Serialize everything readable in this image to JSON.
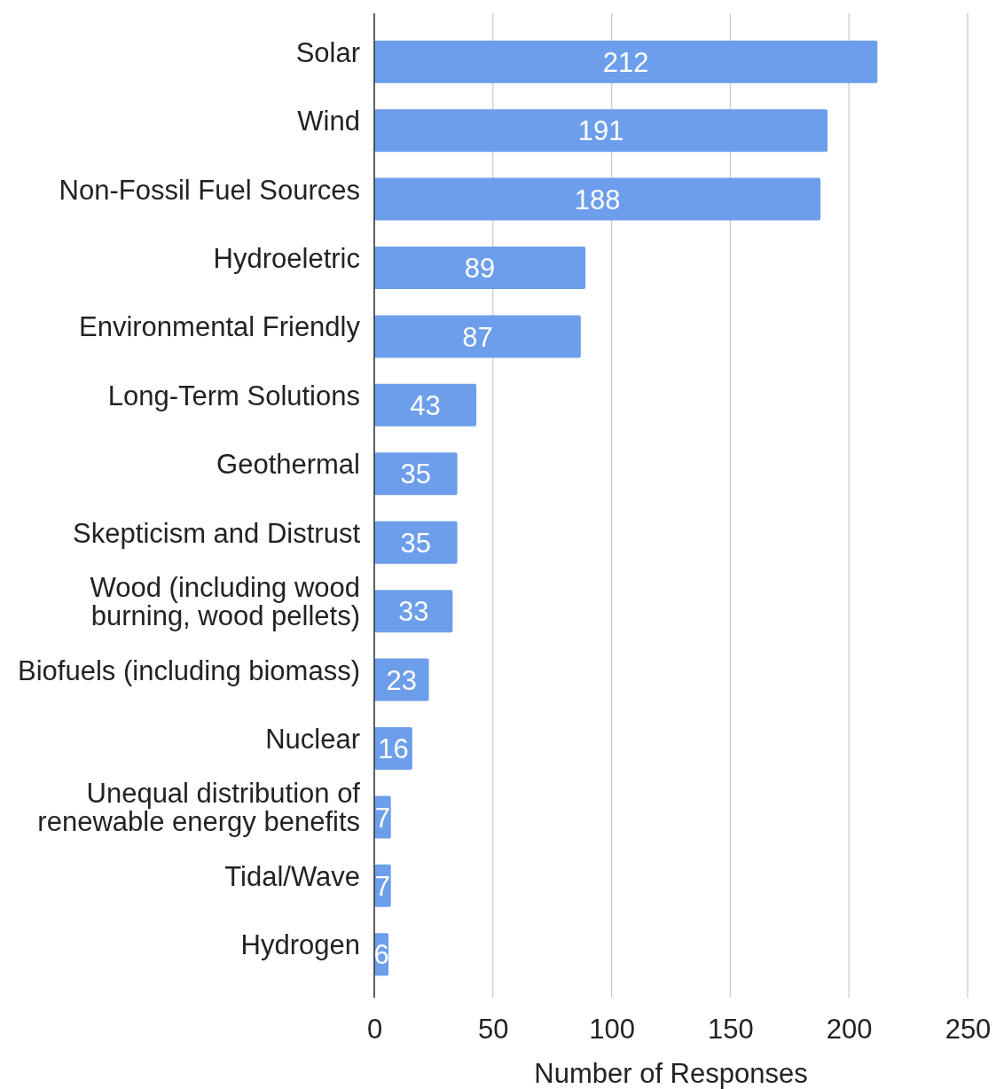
{
  "chart_data": {
    "type": "bar",
    "orientation": "horizontal",
    "categories": [
      "Solar",
      "Wind",
      "Non-Fossil Fuel Sources",
      "Hydroeletric",
      "Environmental Friendly",
      "Long-Term Solutions",
      "Geothermal",
      "Skepticism and Distrust",
      "Wood (including wood burning, wood pellets)",
      "Biofuels (including biomass)",
      "Nuclear",
      "Unequal distribution of renewable energy benefits",
      "Tidal/Wave",
      "Hydrogen"
    ],
    "values": [
      212,
      191,
      188,
      89,
      87,
      43,
      35,
      35,
      33,
      23,
      16,
      7,
      7,
      6
    ],
    "color": "#6d9eeb",
    "xlabel": "Number of Responses",
    "xlim": [
      0,
      250
    ],
    "xticks": [
      0,
      50,
      100,
      150,
      200,
      250
    ],
    "grid": "x",
    "data_labels": true
  }
}
